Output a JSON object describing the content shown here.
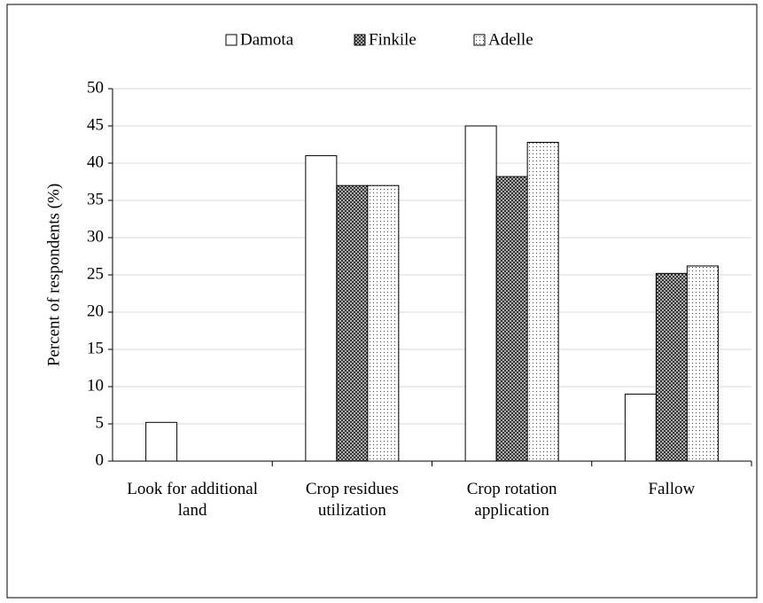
{
  "chart_data": {
    "type": "bar",
    "categories": [
      "Look for additional land",
      "Crop residues utilization",
      "Crop rotation application",
      "Fallow"
    ],
    "series": [
      {
        "name": "Damota",
        "color": "#ffffff",
        "pattern": "solid",
        "values": [
          5.2,
          41,
          45,
          9
        ]
      },
      {
        "name": "Finkile",
        "color": "#333333",
        "pattern": "crosshatch",
        "values": [
          0,
          37,
          38.2,
          25.2
        ]
      },
      {
        "name": "Adelle",
        "color": "#444444",
        "pattern": "dots",
        "values": [
          0,
          37,
          42.8,
          26.2
        ]
      }
    ],
    "y_label": "Percent of respondents  (%)",
    "ylim": [
      0,
      50
    ],
    "yticks": [
      0,
      5,
      10,
      15,
      20,
      25,
      30,
      35,
      40,
      45,
      50
    ],
    "grid": true,
    "legend": "top"
  }
}
